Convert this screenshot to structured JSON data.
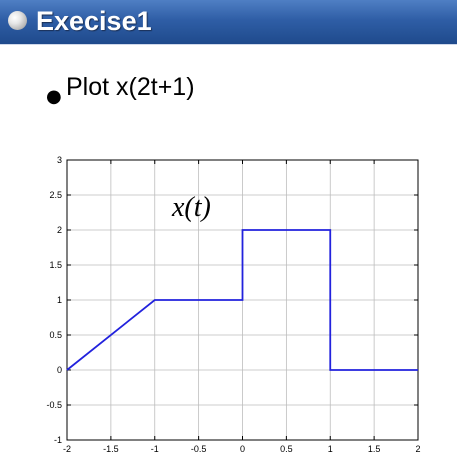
{
  "slide": {
    "title": "Execise1",
    "bullet": "Plot x(2t+1)"
  },
  "chart_data": {
    "type": "line",
    "annotation": "x(t)",
    "x_ticks": [
      "-2",
      "-1.5",
      "-1",
      "-0.5",
      "0",
      "0.5",
      "1",
      "1.5",
      "2"
    ],
    "y_ticks": [
      "-1",
      "-0.5",
      "0",
      "0.5",
      "1",
      "1.5",
      "2",
      "2.5",
      "3"
    ],
    "xlim": [
      -2,
      2
    ],
    "ylim": [
      -1,
      3
    ],
    "grid": true,
    "series": [
      {
        "color": "#2222dd",
        "x": [
          -2,
          -1,
          0,
          0,
          1,
          1,
          2
        ],
        "y": [
          0,
          1,
          1,
          2,
          2,
          0,
          0
        ]
      }
    ]
  }
}
